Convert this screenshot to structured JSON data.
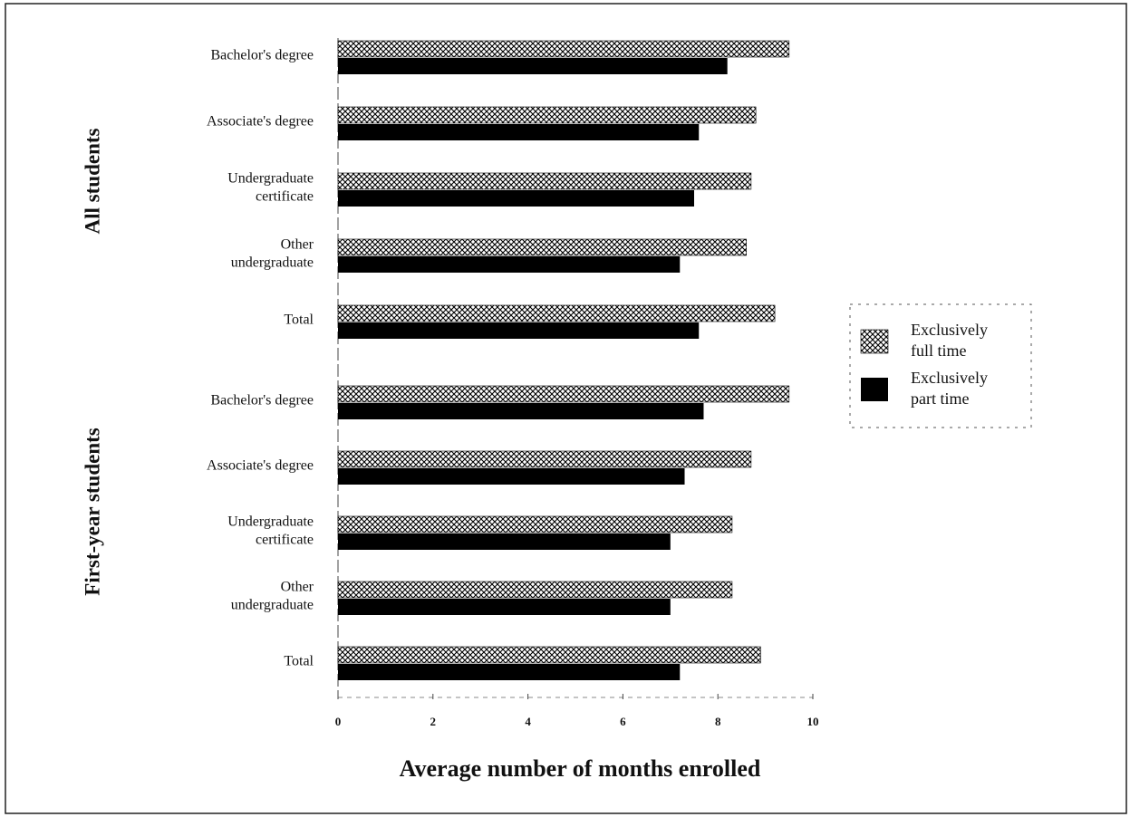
{
  "chart_data": {
    "type": "bar",
    "orientation": "horizontal",
    "xlabel": "Average number of months enrolled",
    "xlim": [
      0,
      10
    ],
    "xticks": [
      0,
      2,
      4,
      6,
      8,
      10
    ],
    "groups": [
      {
        "name": "All students",
        "categories": [
          [
            "Bachelor's degree"
          ],
          [
            "Associate's degree"
          ],
          [
            "Undergraduate",
            "certificate"
          ],
          [
            "Other",
            "undergraduate"
          ],
          [
            "Total"
          ]
        ]
      },
      {
        "name": "First-year students",
        "categories": [
          [
            "Bachelor's degree"
          ],
          [
            "Associate's degree"
          ],
          [
            "Undergraduate",
            "certificate"
          ],
          [
            "Other",
            "undergraduate"
          ],
          [
            "Total"
          ]
        ]
      }
    ],
    "series": [
      {
        "name": "Exclusively full time",
        "color": "#000000",
        "pattern": "crosshatch",
        "values": [
          [
            9.5,
            8.8,
            8.7,
            8.6,
            9.2
          ],
          [
            9.5,
            8.7,
            8.3,
            8.3,
            8.9
          ]
        ]
      },
      {
        "name": "Exclusively part time",
        "color": "#000000",
        "pattern": "solid",
        "values": [
          [
            8.2,
            7.6,
            7.5,
            7.2,
            7.6
          ],
          [
            7.7,
            7.3,
            7.0,
            7.0,
            7.2
          ]
        ]
      }
    ],
    "legend": "right"
  }
}
